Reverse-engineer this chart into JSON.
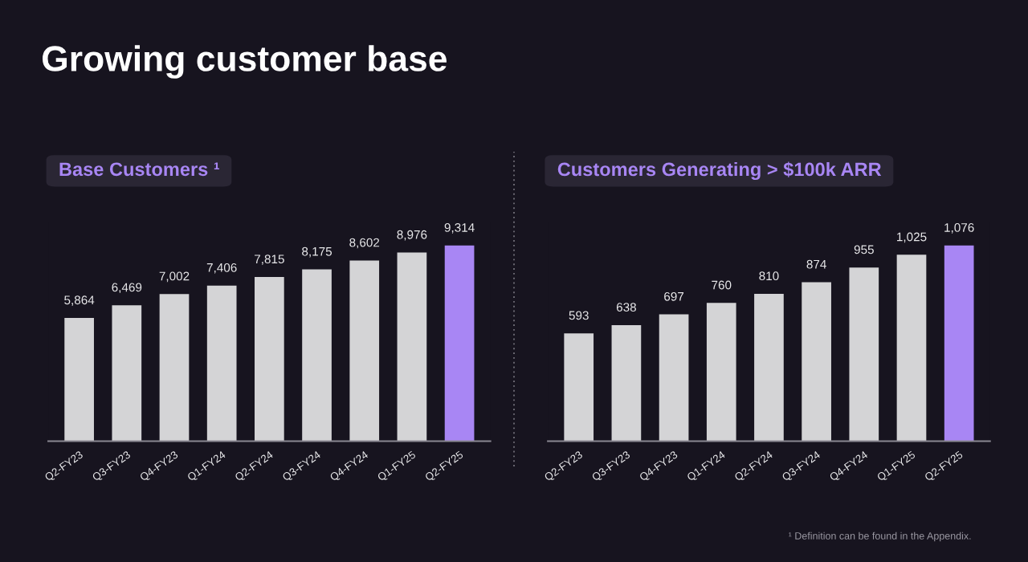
{
  "chart_data": [
    {
      "type": "bar",
      "title": "Base Customers ¹",
      "annotations": [
        "Growing customer base"
      ],
      "categories": [
        "Q2-FY23",
        "Q3-FY23",
        "Q4-FY23",
        "Q1-FY24",
        "Q2-FY24",
        "Q3-FY24",
        "Q4-FY24",
        "Q1-FY25",
        "Q2-FY25"
      ],
      "values": [
        5864,
        6469,
        7002,
        7406,
        7815,
        8175,
        8602,
        8976,
        9314
      ],
      "colors": [
        "#d4d4d6",
        "#d4d4d6",
        "#d4d4d6",
        "#d4d4d6",
        "#d4d4d6",
        "#d4d4d6",
        "#d4d4d6",
        "#d4d4d6",
        "#a886f4"
      ],
      "value_labels": [
        "5,864",
        "6,469",
        "7,002",
        "7,406",
        "7,815",
        "8,175",
        "8,602",
        "8,976",
        "9,314"
      ],
      "grid": false,
      "legend": false
    },
    {
      "type": "bar",
      "title": "Customers Generating > $100k ARR",
      "annotations": [
        "¹ Definition can be found in the Appendix."
      ],
      "categories": [
        "Q2-FY23",
        "Q3-FY23",
        "Q4-FY23",
        "Q1-FY24",
        "Q2-FY24",
        "Q3-FY24",
        "Q4-FY24",
        "Q1-FY25",
        "Q2-FY25"
      ],
      "values": [
        593,
        638,
        697,
        760,
        810,
        874,
        955,
        1025,
        1076
      ],
      "colors": [
        "#d4d4d6",
        "#d4d4d6",
        "#d4d4d6",
        "#d4d4d6",
        "#d4d4d6",
        "#d4d4d6",
        "#d4d4d6",
        "#d4d4d6",
        "#a886f4"
      ],
      "value_labels": [
        "593",
        "638",
        "697",
        "760",
        "810",
        "874",
        "955",
        "1,025",
        "1,076"
      ],
      "grid": false,
      "legend": false
    }
  ]
}
